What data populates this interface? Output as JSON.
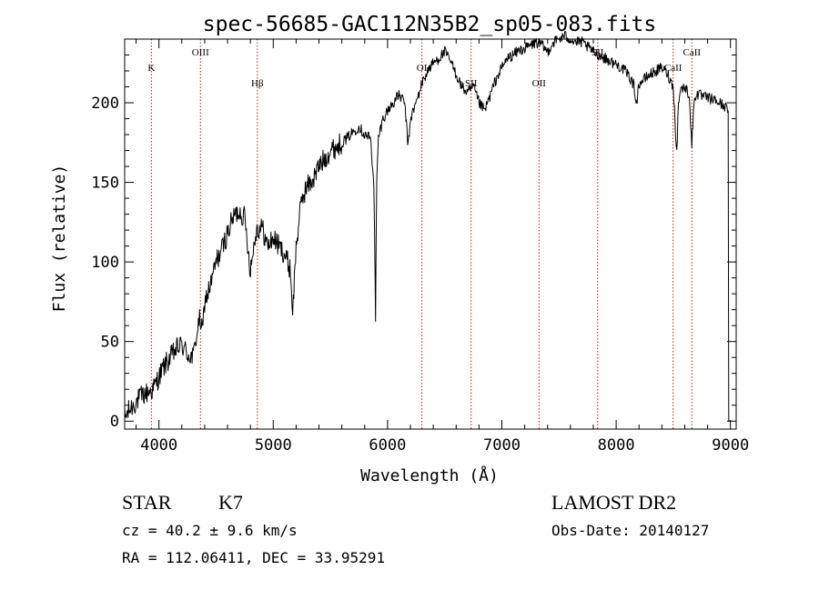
{
  "chart_data": {
    "type": "line",
    "title": "spec-56685-GAC112N35B2_sp05-083.fits",
    "xlabel": "Wavelength (Å)",
    "ylabel": "Flux (relative)",
    "xlim": [
      3700,
      9050
    ],
    "ylim": [
      -5,
      240
    ],
    "xticks": [
      4000,
      5000,
      6000,
      7000,
      8000,
      9000
    ],
    "yticks": [
      0,
      50,
      100,
      150,
      200
    ],
    "grid": false,
    "line_color": "#000000",
    "marker_line_color": "#b22222",
    "series": [
      {
        "x": [
          3700,
          3750,
          3800,
          3850,
          3900,
          3950,
          4000,
          4050,
          4100,
          4150,
          4200,
          4250,
          4300,
          4330,
          4360,
          4380,
          4400,
          4450,
          4500,
          4550,
          4600,
          4650,
          4700,
          4750,
          4800,
          4850,
          4900,
          4950,
          5000,
          5050,
          5100,
          5150,
          5170,
          5200,
          5250,
          5300,
          5350,
          5400,
          5450,
          5500,
          5550,
          5600,
          5650,
          5700,
          5750,
          5800,
          5850,
          5880,
          5895,
          5905,
          5920,
          5960,
          6000,
          6050,
          6100,
          6150,
          6180,
          6200,
          6250,
          6300,
          6350,
          6400,
          6450,
          6500,
          6550,
          6600,
          6650,
          6700,
          6750,
          6800,
          6850,
          6900,
          6950,
          7000,
          7050,
          7100,
          7150,
          7200,
          7250,
          7300,
          7350,
          7400,
          7450,
          7500,
          7550,
          7600,
          7650,
          7700,
          7750,
          7800,
          7850,
          7900,
          7950,
          8000,
          8050,
          8100,
          8150,
          8180,
          8200,
          8250,
          8300,
          8350,
          8400,
          8450,
          8500,
          8530,
          8545,
          8560,
          8600,
          8640,
          8662,
          8680,
          8700,
          8750,
          8800,
          8850,
          8900,
          8950,
          8980,
          8985,
          9000
        ],
        "y": [
          2,
          8,
          12,
          16,
          18,
          20,
          28,
          35,
          40,
          45,
          48,
          42,
          40,
          55,
          65,
          55,
          75,
          85,
          100,
          108,
          118,
          128,
          132,
          128,
          95,
          120,
          122,
          110,
          115,
          110,
          105,
          95,
          68,
          110,
          140,
          148,
          152,
          160,
          165,
          170,
          172,
          175,
          178,
          182,
          185,
          180,
          178,
          150,
          65,
          150,
          178,
          190,
          195,
          200,
          205,
          200,
          172,
          190,
          200,
          212,
          220,
          225,
          228,
          232,
          226,
          218,
          210,
          206,
          210,
          200,
          195,
          205,
          215,
          222,
          228,
          230,
          233,
          234,
          236,
          238,
          236,
          232,
          238,
          240,
          242,
          240,
          238,
          238,
          235,
          232,
          230,
          228,
          226,
          224,
          222,
          218,
          212,
          200,
          212,
          215,
          218,
          220,
          222,
          218,
          210,
          168,
          200,
          208,
          210,
          205,
          172,
          200,
          206,
          204,
          203,
          202,
          200,
          198,
          195,
          0,
          0
        ]
      }
    ],
    "line_markers": [
      {
        "label": "K",
        "x": 3934,
        "row": "mid"
      },
      {
        "label": "OIII",
        "x": 4363,
        "row": "top"
      },
      {
        "label": "Hβ",
        "x": 4861,
        "row": "low"
      },
      {
        "label": "OI",
        "x": 6300,
        "row": "mid"
      },
      {
        "label": "SII",
        "x": 6731,
        "row": "low"
      },
      {
        "label": "OII",
        "x": 7325,
        "row": "low"
      },
      {
        "label": "SII",
        "x": 7838,
        "row": "top"
      },
      {
        "label": "CaII",
        "x": 8498,
        "row": "mid"
      },
      {
        "label": "CaII",
        "x": 8662,
        "row": "top"
      }
    ]
  },
  "info": {
    "object_class": "STAR",
    "subclass": "K7",
    "survey": "LAMOST DR2",
    "redshift_line": "cz = 40.2 ± 9.6 km/s",
    "obs_date": "Obs-Date: 20140127",
    "coords": "RA = 112.06411, DEC =  33.95291"
  }
}
